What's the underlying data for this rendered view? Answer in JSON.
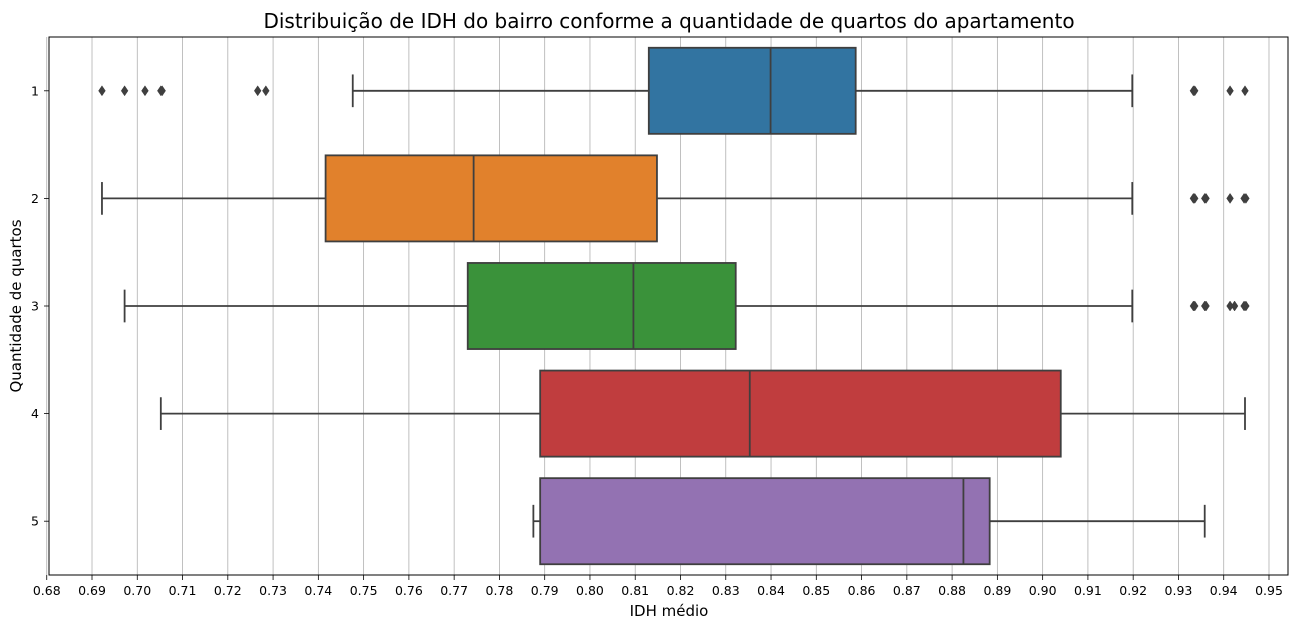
{
  "chart_data": {
    "type": "boxplot",
    "orientation": "horizontal",
    "title": "Distribuição de IDH do bairro conforme a quantidade de quartos do apartamento",
    "xlabel": "IDH médio",
    "ylabel": "Quantidade de quartos",
    "xlim": [
      0.6805,
      0.9542
    ],
    "xticks": [
      "0.68",
      "0.69",
      "0.70",
      "0.71",
      "0.72",
      "0.73",
      "0.74",
      "0.75",
      "0.76",
      "0.77",
      "0.78",
      "0.79",
      "0.80",
      "0.81",
      "0.82",
      "0.83",
      "0.84",
      "0.85",
      "0.86",
      "0.87",
      "0.88",
      "0.89",
      "0.90",
      "0.91",
      "0.92",
      "0.93",
      "0.94",
      "0.95"
    ],
    "grid": "vertical",
    "categories": [
      "1",
      "2",
      "3",
      "4",
      "5"
    ],
    "boxes": [
      {
        "category": "1",
        "color": "#3274a1",
        "whisker_low": 0.7476,
        "q1": 0.813,
        "median": 0.8399,
        "q3": 0.8587,
        "whisker_high": 0.9198,
        "outliers": [
          0.6922,
          0.6972,
          0.7017,
          0.7052,
          0.7055,
          0.7266,
          0.7284,
          0.9333,
          0.9336,
          0.9414,
          0.9447
        ]
      },
      {
        "category": "2",
        "color": "#e1812c",
        "whisker_low": 0.6922,
        "q1": 0.7416,
        "median": 0.7743,
        "q3": 0.8148,
        "whisker_high": 0.9198,
        "outliers": [
          0.9333,
          0.9336,
          0.9358,
          0.9361,
          0.9414,
          0.9445,
          0.9449
        ]
      },
      {
        "category": "3",
        "color": "#3a923a",
        "whisker_low": 0.6972,
        "q1": 0.773,
        "median": 0.8096,
        "q3": 0.8322,
        "whisker_high": 0.9198,
        "outliers": [
          0.9333,
          0.9336,
          0.9358,
          0.9361,
          0.9414,
          0.9424,
          0.9445,
          0.9449
        ]
      },
      {
        "category": "4",
        "color": "#c03d3e",
        "whisker_low": 0.7052,
        "q1": 0.789,
        "median": 0.8353,
        "q3": 0.904,
        "whisker_high": 0.9447,
        "outliers": []
      },
      {
        "category": "5",
        "color": "#9372b2",
        "whisker_low": 0.7875,
        "q1": 0.789,
        "median": 0.8825,
        "q3": 0.8883,
        "whisker_high": 0.9358,
        "outliers": []
      }
    ]
  }
}
